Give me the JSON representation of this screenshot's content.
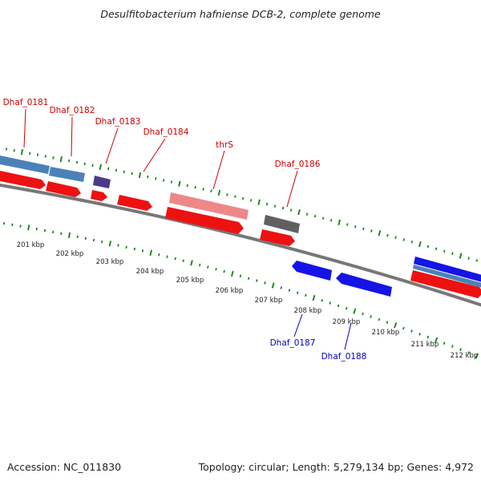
{
  "title": "Desulfitobacterium hafniense DCB-2, complete genome",
  "footer": {
    "accession": "Accession: NC_011830",
    "topology": "Topology: circular; Length: 5,279,134 bp; Genes: 4,972"
  },
  "colors": {
    "background": "#ffffff",
    "backbone": "#7a7a7a",
    "tick": "#1f8a1f",
    "label_red": "#cc0000",
    "label_blue": "#0000bb",
    "gene_red": "#ee1111",
    "gene_blue": "#1414e6",
    "gene_steel": "#4a82b8",
    "gene_pink": "#ee8888",
    "gene_purple": "#4a3a8c",
    "gene_gray": "#606060"
  },
  "scale": {
    "unit": "kbp",
    "labels": [
      "201 kbp",
      "202 kbp",
      "203 kbp",
      "204 kbp",
      "205 kbp",
      "206 kbp",
      "207 kbp",
      "208 kbp",
      "209 kbp",
      "210 kbp",
      "211 kbp",
      "212 kbp"
    ]
  },
  "genes": {
    "forward": [
      {
        "name": "Dhaf_0181",
        "color": "gene_steel"
      },
      {
        "name": "Dhaf_0182",
        "color": "gene_steel"
      },
      {
        "name": "Dhaf_0183",
        "color": "gene_purple"
      },
      {
        "name": "Dhaf_0184",
        "color": "gene_red"
      },
      {
        "name": "thrS",
        "color": "gene_pink"
      },
      {
        "name": "Dhaf_0186",
        "color": "gene_gray"
      }
    ],
    "reverse": [
      {
        "name": "Dhaf_0187",
        "color": "gene_blue"
      },
      {
        "name": "Dhaf_0188",
        "color": "gene_blue"
      }
    ]
  }
}
